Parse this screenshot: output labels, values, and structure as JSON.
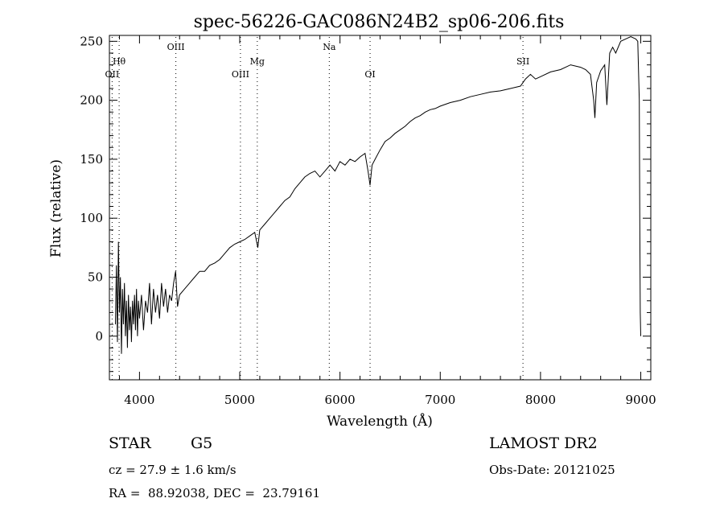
{
  "chart_data": {
    "type": "line",
    "title": "spec-56226-GAC086N24B2_sp06-206.fits",
    "xlabel": "Wavelength (Å)",
    "ylabel": "Flux (relative)",
    "xlim": [
      3700,
      9100
    ],
    "ylim": [
      -37,
      255
    ],
    "x_ticks": [
      4000,
      5000,
      6000,
      7000,
      8000,
      9000
    ],
    "y_ticks": [
      0,
      50,
      100,
      150,
      200,
      250
    ],
    "grid": false,
    "line_color": "#000000",
    "series": [
      {
        "x": [
          3760,
          3770,
          3780,
          3790,
          3800,
          3810,
          3820,
          3830,
          3840,
          3850,
          3860,
          3870,
          3880,
          3890,
          3900,
          3910,
          3920,
          3930,
          3940,
          3950,
          3960,
          3970,
          3980,
          3990,
          4000,
          4020,
          4040,
          4060,
          4080,
          4100,
          4120,
          4140,
          4160,
          4180,
          4200,
          4220,
          4240,
          4260,
          4280,
          4300,
          4320,
          4340,
          4360,
          4380,
          4400,
          4450,
          4500,
          4550,
          4600,
          4650,
          4700,
          4750,
          4800,
          4850,
          4900,
          4950,
          5000,
          5050,
          5100,
          5150,
          5180,
          5200,
          5250,
          5300,
          5350,
          5400,
          5450,
          5500,
          5550,
          5600,
          5650,
          5700,
          5750,
          5800,
          5850,
          5900,
          5950,
          6000,
          6050,
          6100,
          6150,
          6200,
          6250,
          6280,
          6300,
          6320,
          6350,
          6400,
          6450,
          6500,
          6550,
          6600,
          6650,
          6700,
          6750,
          6800,
          6850,
          6900,
          6950,
          7000,
          7100,
          7200,
          7300,
          7400,
          7500,
          7600,
          7700,
          7800,
          7850,
          7900,
          7950,
          8000,
          8100,
          8200,
          8300,
          8400,
          8450,
          8498,
          8530,
          8542,
          8560,
          8600,
          8640,
          8662,
          8690,
          8720,
          8750,
          8800,
          8850,
          8900,
          8950,
          8970,
          8985,
          8990,
          8995,
          9000
        ],
        "y": [
          10,
          60,
          -5,
          80,
          20,
          50,
          -15,
          40,
          10,
          45,
          0,
          30,
          -10,
          35,
          5,
          25,
          -5,
          30,
          10,
          35,
          5,
          40,
          0,
          30,
          15,
          35,
          5,
          30,
          20,
          45,
          10,
          40,
          20,
          35,
          15,
          45,
          25,
          40,
          20,
          35,
          30,
          45,
          55,
          25,
          35,
          40,
          45,
          50,
          55,
          55,
          60,
          62,
          65,
          70,
          75,
          78,
          80,
          82,
          85,
          88,
          75,
          90,
          95,
          100,
          105,
          110,
          115,
          118,
          125,
          130,
          135,
          138,
          140,
          135,
          140,
          145,
          140,
          148,
          145,
          150,
          148,
          152,
          155,
          140,
          128,
          145,
          150,
          158,
          165,
          168,
          172,
          175,
          178,
          182,
          185,
          187,
          190,
          192,
          193,
          195,
          198,
          200,
          203,
          205,
          207,
          208,
          210,
          212,
          218,
          222,
          218,
          220,
          224,
          226,
          230,
          228,
          226,
          222,
          200,
          185,
          215,
          225,
          230,
          196,
          240,
          245,
          240,
          250,
          252,
          254,
          252,
          250,
          200,
          100,
          20,
          0
        ]
      }
    ],
    "line_markers": [
      {
        "label": "Hθ",
        "x": 3797,
        "tier": 2
      },
      {
        "label": "OII",
        "x": 3727,
        "tier": 3
      },
      {
        "label": "OIII",
        "x": 4363,
        "tier": 1
      },
      {
        "label": "OIII",
        "x": 5007,
        "tier": 3
      },
      {
        "label": "Mg",
        "x": 5175,
        "tier": 2
      },
      {
        "label": "Na",
        "x": 5893,
        "tier": 1
      },
      {
        "label": "OI",
        "x": 6300,
        "tier": 3
      },
      {
        "label": "SII",
        "x": 7825,
        "tier": 2
      }
    ]
  },
  "info": {
    "object_class": "STAR",
    "subclass": "G5",
    "survey": "LAMOST DR2",
    "redshift": "cz = 27.9 ± 1.6 km/s",
    "obs_date": "Obs-Date: 20121025",
    "coords": "RA =  88.92038, DEC =  23.79161"
  }
}
